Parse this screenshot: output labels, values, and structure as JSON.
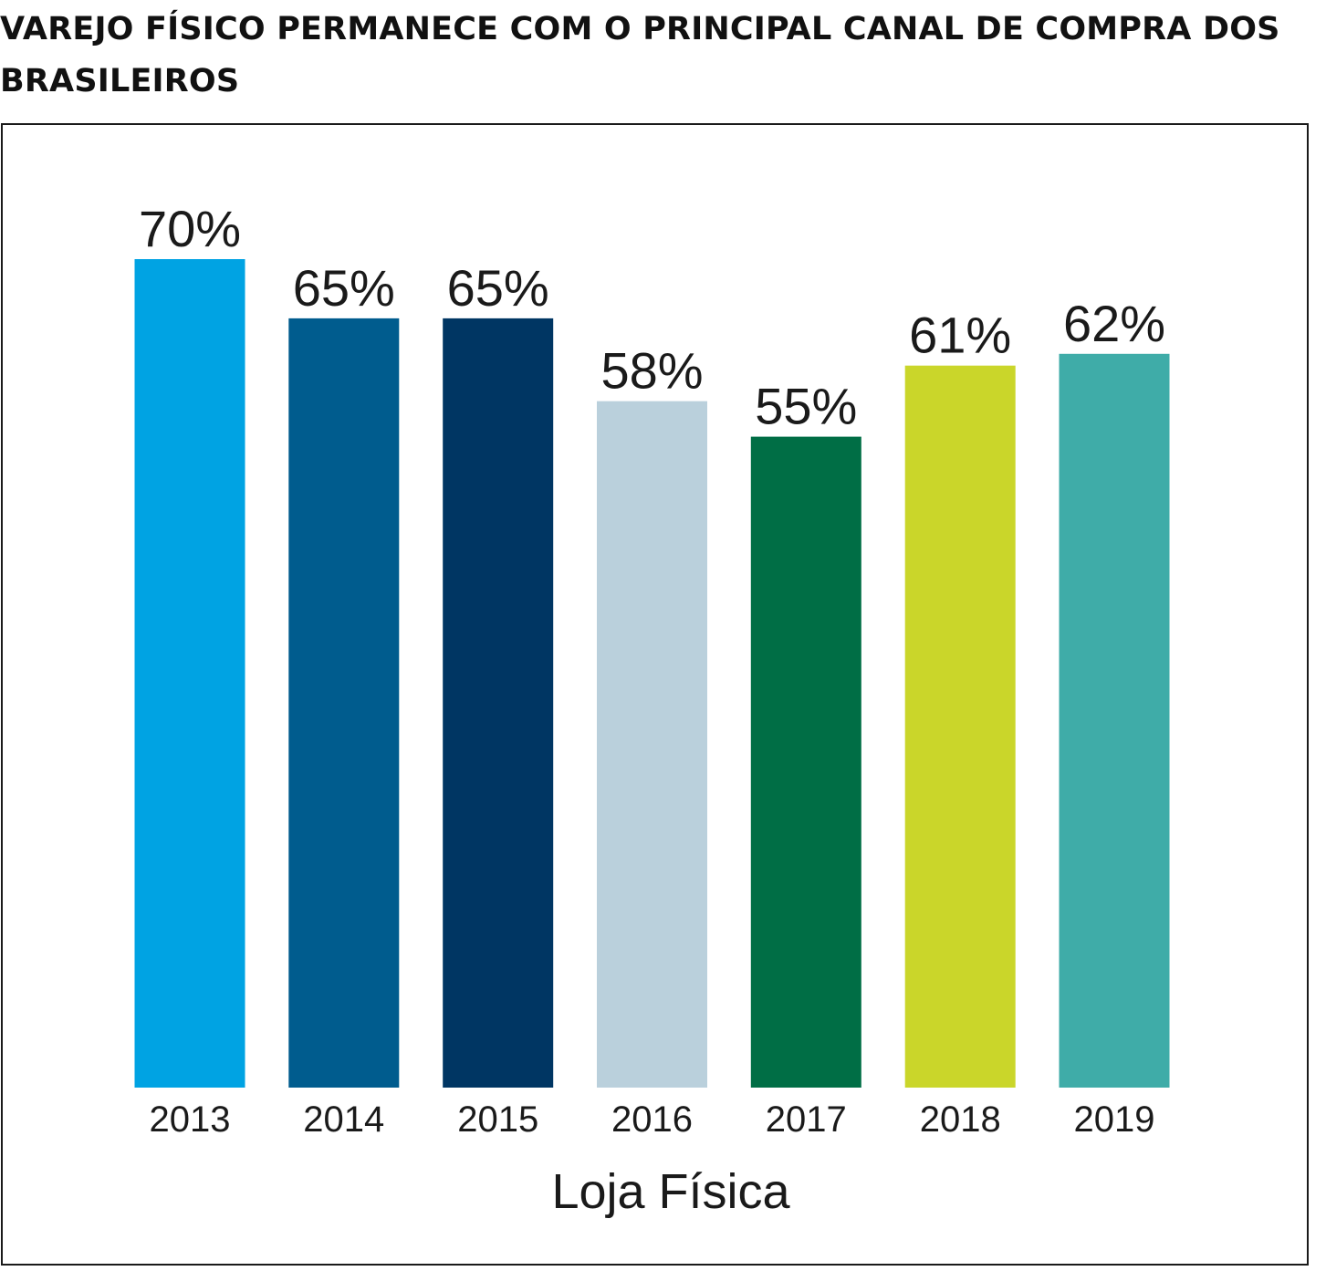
{
  "chart_data": {
    "type": "bar",
    "title": "VAREJO FÍSICO PERMANECE COM O PRINCIPAL CANAL DE COMPRA DOS BRASILEIROS",
    "categories": [
      "2013",
      "2014",
      "2015",
      "2016",
      "2017",
      "2018",
      "2019"
    ],
    "values": [
      70,
      65,
      65,
      58,
      55,
      61,
      62
    ],
    "value_labels": [
      "70%",
      "65%",
      "65%",
      "58%",
      "55%",
      "61%",
      "62%"
    ],
    "unit": "%",
    "xlabel": "Loja Física",
    "ylabel": "",
    "ylim": [
      0,
      70
    ],
    "grid": false,
    "legend": "none",
    "bar_colors": [
      "#00A3E3",
      "#005C8E",
      "#003663",
      "#BAD0DC",
      "#006E45",
      "#CAD62A",
      "#3FACA8"
    ]
  }
}
